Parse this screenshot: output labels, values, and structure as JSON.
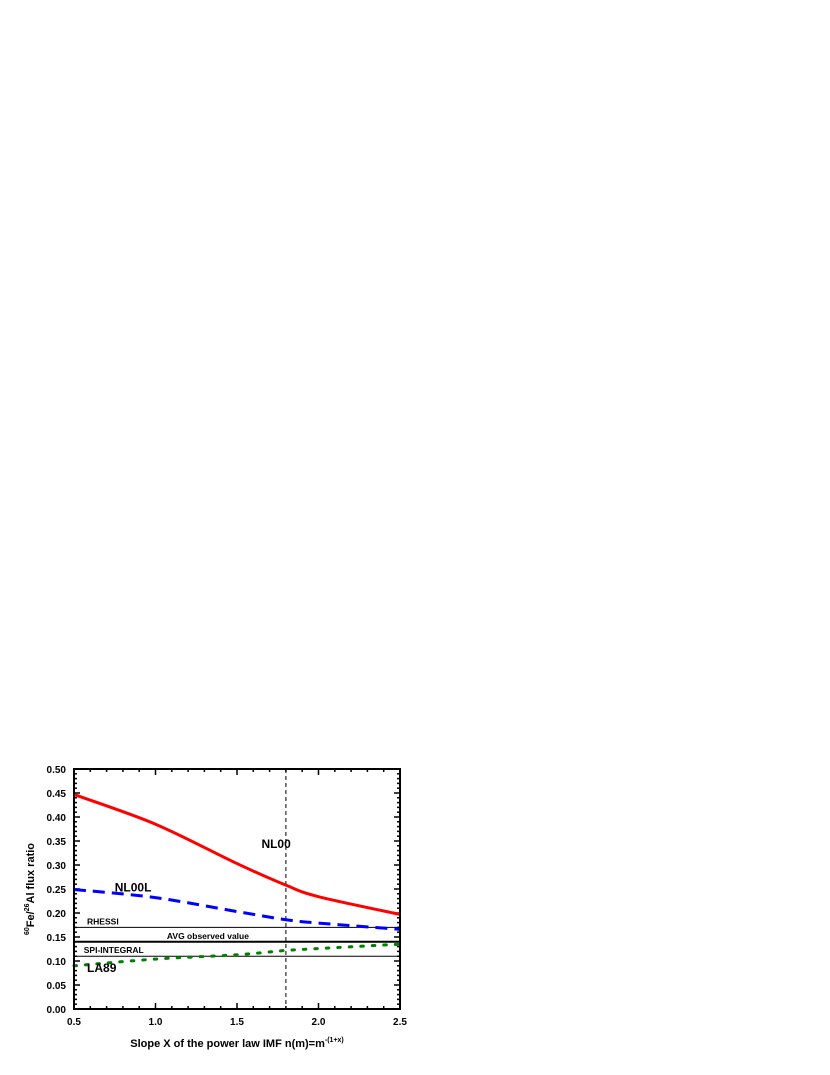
{
  "chart_data": {
    "type": "line",
    "xlabel": "Slope X of the power law IMF n(m)=m",
    "xlabel_sup": "-(1+x)",
    "ylabel_parts": [
      "60",
      "Fe/",
      "26",
      "Al flux ratio"
    ],
    "xlim": [
      0.5,
      2.5
    ],
    "ylim": [
      0.0,
      0.5
    ],
    "xticks": [
      "0.5",
      "1.0",
      "1.5",
      "2.0",
      "2.5"
    ],
    "yticks": [
      "0.00",
      "0.05",
      "0.10",
      "0.15",
      "0.20",
      "0.25",
      "0.30",
      "0.35",
      "0.40",
      "0.45",
      "0.50"
    ],
    "grid": false,
    "x": [
      0.5,
      1.0,
      1.5,
      1.8,
      2.0,
      2.5
    ],
    "series": [
      {
        "name": "NL00",
        "color": "#ff0000",
        "style": "solid",
        "values": [
          0.447,
          0.385,
          0.303,
          0.258,
          0.234,
          0.197
        ]
      },
      {
        "name": "NL00L",
        "color": "#0000ff",
        "style": "dashed",
        "values": [
          0.249,
          0.232,
          0.203,
          0.186,
          0.179,
          0.166
        ]
      },
      {
        "name": "LA89",
        "color": "#008000",
        "style": "dotted",
        "values": [
          0.09,
          0.104,
          0.113,
          0.122,
          0.126,
          0.135
        ]
      }
    ],
    "series_labels": [
      {
        "text": "NL00",
        "x": 1.65,
        "y": 0.335
      },
      {
        "text": "NL00L",
        "x": 0.75,
        "y": 0.245
      },
      {
        "text": "LA89",
        "x": 0.58,
        "y": 0.077
      }
    ],
    "reference_lines": [
      {
        "label": "RHESSI",
        "y": 0.17,
        "label_x": 0.58,
        "width": 1
      },
      {
        "label": "AVG observed value",
        "y": 0.14,
        "label_x": 1.07,
        "width": 2
      },
      {
        "label": "SPI-INTEGRAL",
        "y": 0.11,
        "label_x": 0.56,
        "width": 1
      }
    ],
    "vertical_line": {
      "x": 1.8,
      "style": "dashed"
    }
  }
}
